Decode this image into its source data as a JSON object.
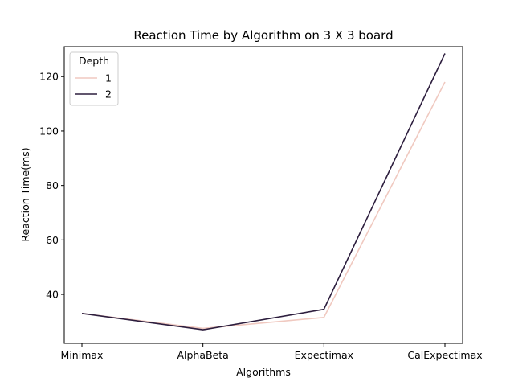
{
  "chart_data": {
    "type": "line",
    "title": "Reaction Time by Algorithm on 3 X 3 board",
    "xlabel": "Algorithms",
    "ylabel": "Reaction Time(ms)",
    "categories": [
      "Minimax",
      "AlphaBeta",
      "Expectimax",
      "CalExpectimax"
    ],
    "ylim": [
      22,
      131
    ],
    "yticks": [
      40,
      60,
      80,
      100,
      120
    ],
    "grid": false,
    "legend": {
      "title": "Depth",
      "position": "top-left"
    },
    "series": [
      {
        "name": "1",
        "color": "#f0c9c0",
        "values": [
          33.0,
          27.5,
          31.5,
          118.0
        ]
      },
      {
        "name": "2",
        "color": "#2d1e3e",
        "values": [
          33.0,
          27.0,
          34.5,
          128.5
        ]
      }
    ]
  }
}
